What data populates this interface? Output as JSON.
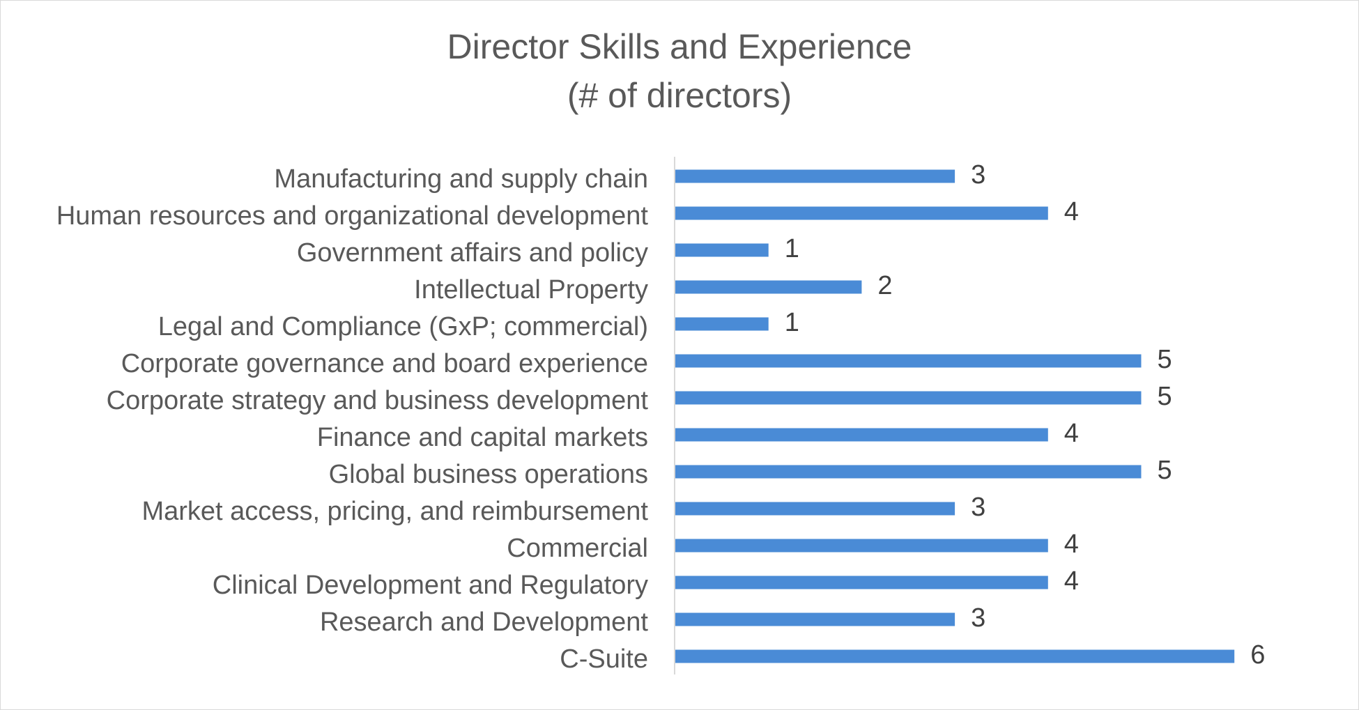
{
  "chart_data": {
    "type": "bar",
    "orientation": "horizontal",
    "title": "Director Skills and Experience",
    "subtitle": "(# of directors)",
    "categories": [
      "Manufacturing and supply chain",
      "Human resources and organizational development",
      "Government affairs and policy",
      "Intellectual Property",
      "Legal and Compliance (GxP; commercial)",
      "Corporate governance and board experience",
      "Corporate strategy and business development",
      "Finance and capital markets",
      "Global business operations",
      "Market access, pricing, and reimbursement",
      "Commercial",
      "Clinical Development and Regulatory",
      "Research and Development",
      "C-Suite"
    ],
    "values": [
      3,
      4,
      1,
      2,
      1,
      5,
      5,
      4,
      5,
      3,
      4,
      4,
      3,
      6
    ],
    "xlim": [
      0,
      6
    ],
    "data_labels": true,
    "grid": false,
    "legend": "none",
    "bar_color": "#4a8bd6"
  }
}
